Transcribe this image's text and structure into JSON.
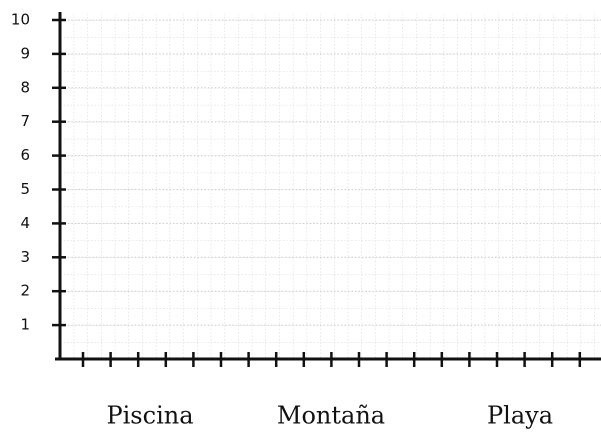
{
  "chart_data": {
    "type": "bar",
    "categories": [
      "Piscina",
      "Montaña",
      "Playa"
    ],
    "ylim": [
      0,
      10
    ],
    "yticks": [
      1,
      2,
      3,
      4,
      5,
      6,
      7,
      8,
      9,
      10
    ],
    "grid": true
  }
}
